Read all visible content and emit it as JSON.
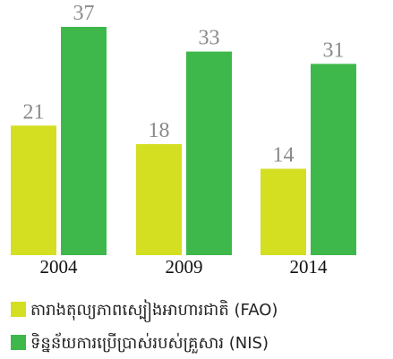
{
  "chart_data": {
    "type": "bar",
    "categories": [
      "2004",
      "2009",
      "2014"
    ],
    "series": [
      {
        "name": "តារាងតុល្យភាពស្បៀងអាហារជាតិ (FAO)",
        "color": "#d4df22",
        "values": [
          21,
          18,
          14
        ]
      },
      {
        "name": "ទិន្នន័យការប្រើប្រាស់របស់គ្រួសារ (NIS)",
        "color": "#3fb84b",
        "values": [
          37,
          33,
          31
        ]
      }
    ]
  }
}
